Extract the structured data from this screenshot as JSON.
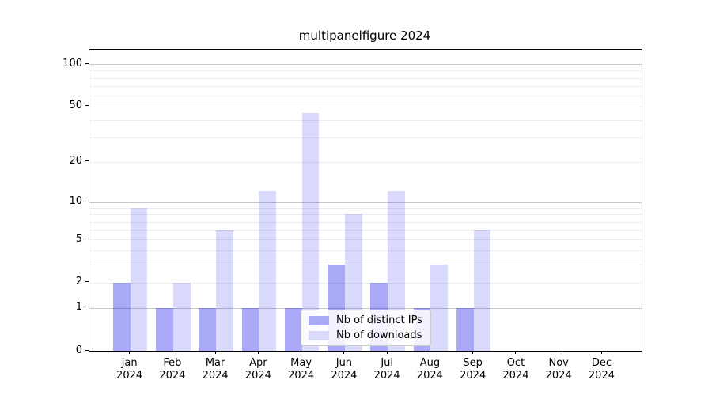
{
  "chart_data": {
    "type": "bar",
    "title": "multipanelfigure 2024",
    "categories": [
      "Jan",
      "Feb",
      "Mar",
      "Apr",
      "May",
      "Jun",
      "Jul",
      "Aug",
      "Sep",
      "Oct",
      "Nov",
      "Dec"
    ],
    "x_tick_year": "2024",
    "series": [
      {
        "name": "Nb of distinct IPs",
        "color": "rgba(10, 10, 235, 0.35)",
        "solid_color": "#a9a9f6",
        "values": [
          2,
          1,
          1,
          1,
          1,
          3,
          2,
          1,
          1,
          0,
          0,
          0
        ]
      },
      {
        "name": "Nb of downloads",
        "color": "rgba(10, 10, 235, 0.15)",
        "solid_color": "#dadafb",
        "values": [
          9,
          2,
          6,
          12,
          45,
          8,
          12,
          3,
          6,
          0,
          0,
          0
        ]
      }
    ],
    "yscale": "log1p",
    "ylim": [
      0,
      126
    ],
    "yticks": [
      {
        "label": "100",
        "value": 100
      },
      {
        "label": "50",
        "value": 50
      },
      {
        "label": "20",
        "value": 20
      },
      {
        "label": "10",
        "value": 10
      },
      {
        "label": "5",
        "value": 5
      },
      {
        "label": "2",
        "value": 2
      },
      {
        "label": "1",
        "value": 1
      },
      {
        "label": "0",
        "value": 0
      }
    ],
    "major_gridlines": [
      1,
      10,
      100
    ],
    "minor_gridlines": [
      2,
      3,
      4,
      5,
      6,
      7,
      8,
      9,
      20,
      30,
      40,
      50,
      60,
      70,
      80,
      90
    ],
    "grid_major_color": "#c8c8c8",
    "grid_minor_color": "#ededed",
    "legend": {
      "position": "lower center",
      "entries": [
        "Nb of distinct IPs",
        "Nb of downloads"
      ]
    }
  }
}
